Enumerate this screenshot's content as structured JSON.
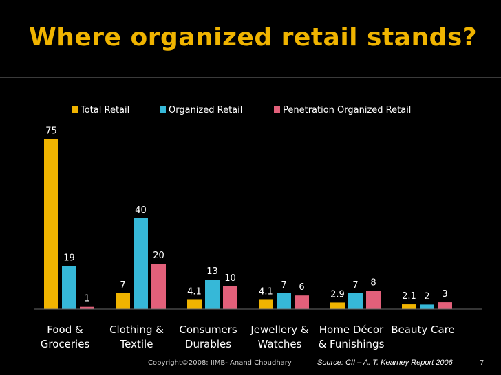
{
  "slide": {
    "title": "Where organized retail stands?",
    "copyright": "Copyright©2008: IIMB- Anand Choudhary",
    "source": "Source: CII – A. T. Kearney Report 2006",
    "page_number": "7"
  },
  "chart_data": {
    "type": "bar",
    "title": "",
    "xlabel": "",
    "ylabel": "",
    "ylim": [
      0,
      80
    ],
    "grid": false,
    "legend_position": "top",
    "categories": [
      [
        "Food &",
        "Groceries"
      ],
      [
        "Clothing &",
        "Textile"
      ],
      [
        "Consumers",
        "Durables"
      ],
      [
        "Jewellery &",
        "Watches"
      ],
      [
        "Home Décor",
        "& Funishings"
      ],
      [
        "Beauty Care"
      ]
    ],
    "series": [
      {
        "name": "Total Retail",
        "color": "#f0b400",
        "values": [
          75,
          7,
          4.1,
          4.1,
          2.9,
          2.1
        ]
      },
      {
        "name": "Organized Retail",
        "color": "#36b8d8",
        "values": [
          19,
          40,
          13,
          7,
          7,
          2
        ]
      },
      {
        "name": "Penetration Organized Retail",
        "color": "#e2607a",
        "values": [
          1,
          20,
          10,
          6,
          8,
          3
        ]
      }
    ],
    "data_labels": [
      [
        "75",
        "7",
        "4.1",
        "4.1",
        "2.9",
        "2.1"
      ],
      [
        "19",
        "40",
        "13",
        "7",
        "7",
        "2"
      ],
      [
        "1",
        "20",
        "10",
        "6",
        "8",
        "3"
      ]
    ]
  }
}
